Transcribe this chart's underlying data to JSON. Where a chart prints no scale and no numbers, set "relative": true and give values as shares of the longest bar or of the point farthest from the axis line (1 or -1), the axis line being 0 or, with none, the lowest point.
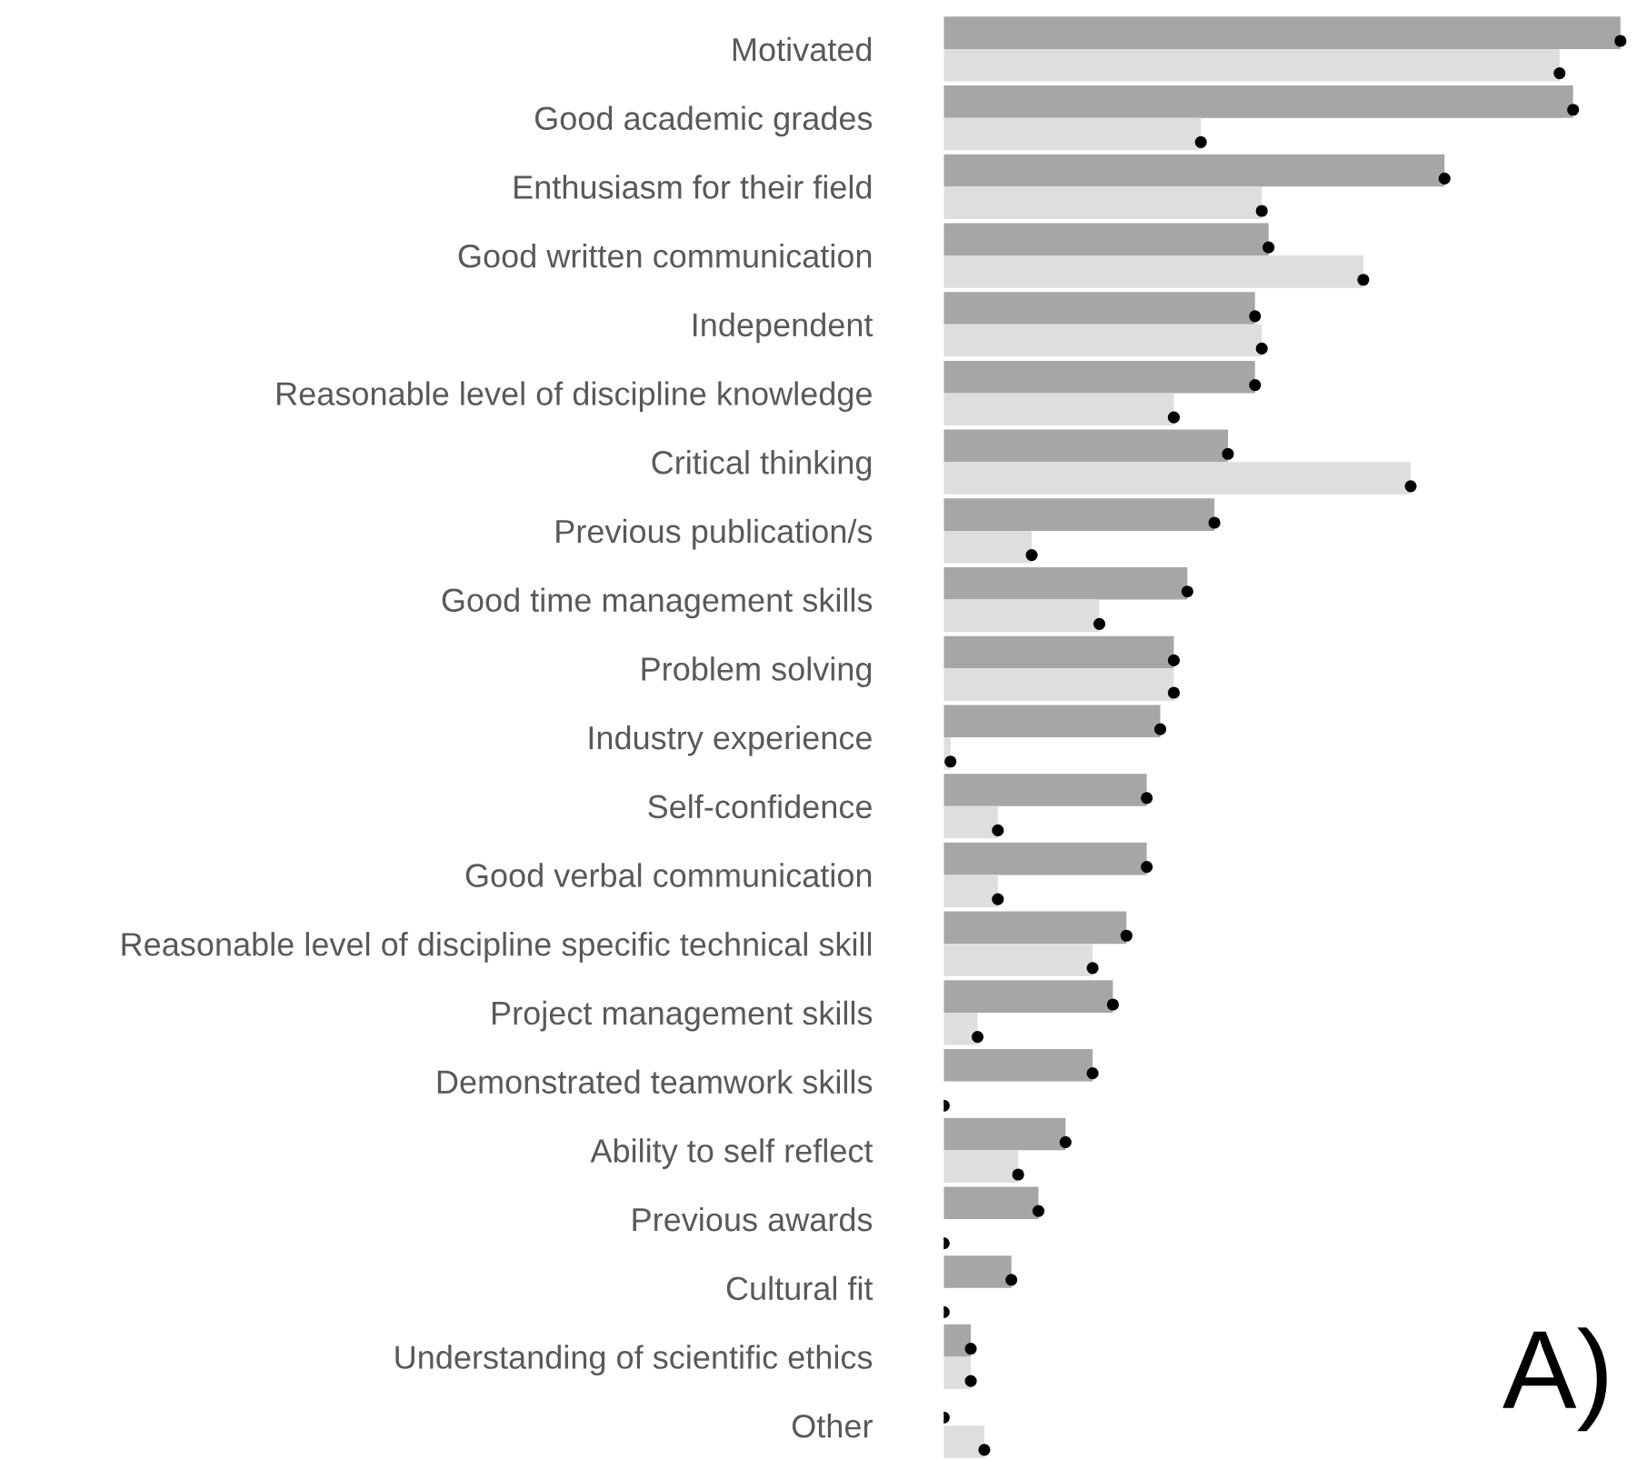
{
  "chart_data": {
    "type": "bar",
    "orientation": "horizontal",
    "relative": true,
    "grid": false,
    "legend": false,
    "categories": [
      "Motivated",
      "Good academic grades",
      "Enthusiasm for their field",
      "Good written communication",
      "Independent",
      "Reasonable level of discipline knowledge",
      "Critical thinking",
      "Previous publication/s",
      "Good time management skills",
      "Problem solving",
      "Industry experience",
      "Self-confidence",
      "Good verbal communication",
      "Reasonable level of discipline specific technical skill",
      "Project management skills",
      "Demonstrated teamwork skills",
      "Ability to self reflect",
      "Previous awards",
      "Cultural fit",
      "Understanding of scientific ethics",
      "Other"
    ],
    "series": [
      {
        "color": "#a6a6a6",
        "values": [
          1.0,
          0.93,
          0.74,
          0.48,
          0.46,
          0.46,
          0.42,
          0.4,
          0.36,
          0.34,
          0.32,
          0.3,
          0.3,
          0.27,
          0.25,
          0.22,
          0.18,
          0.14,
          0.1,
          0.04,
          0.0
        ]
      },
      {
        "color": "#dedede",
        "values": [
          0.91,
          0.38,
          0.47,
          0.62,
          0.47,
          0.34,
          0.69,
          0.13,
          0.23,
          0.34,
          0.01,
          0.08,
          0.08,
          0.22,
          0.05,
          0.0,
          0.11,
          0.0,
          0.0,
          0.04,
          0.06
        ]
      },
      {
        "type": "scatter",
        "marker": "circle",
        "color": "#000000",
        "values": [
          1.0,
          0.93,
          0.74,
          0.48,
          0.46,
          0.46,
          0.42,
          0.4,
          0.36,
          0.34,
          0.32,
          0.3,
          0.3,
          0.27,
          0.25,
          0.22,
          0.18,
          0.14,
          0.1,
          0.04,
          0.0
        ]
      },
      {
        "type": "scatter",
        "marker": "circle",
        "color": "#000000",
        "values": [
          0.91,
          0.38,
          0.47,
          0.62,
          0.47,
          0.34,
          0.69,
          0.13,
          0.23,
          0.34,
          0.01,
          0.08,
          0.08,
          0.22,
          0.05,
          0.0,
          0.11,
          0.0,
          0.0,
          0.04,
          0.06
        ]
      }
    ],
    "annotations": [
      "A)"
    ]
  }
}
